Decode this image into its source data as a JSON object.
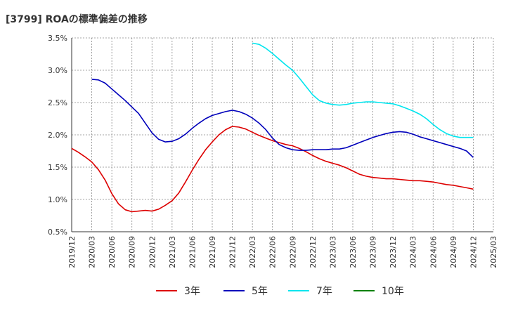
{
  "chart_data": {
    "type": "line",
    "title": "[3799]  ROAの標準偏差の推移",
    "xlabel": "",
    "ylabel": "",
    "x_ticks": [
      "2019/12",
      "2020/03",
      "2020/06",
      "2020/09",
      "2020/12",
      "2021/03",
      "2021/06",
      "2021/09",
      "2021/12",
      "2022/03",
      "2022/06",
      "2022/09",
      "2022/12",
      "2023/03",
      "2023/06",
      "2023/09",
      "2023/12",
      "2024/03",
      "2024/06",
      "2024/09",
      "2024/12",
      "2025/03"
    ],
    "y_ticks": [
      "0.5%",
      "1.0%",
      "1.5%",
      "2.0%",
      "2.5%",
      "3.0%",
      "3.5%"
    ],
    "ylim": [
      0.5,
      3.5
    ],
    "grid": true,
    "legend_position": "bottom",
    "series": [
      {
        "name": "3年",
        "color": "#dd0000",
        "values": [
          [
            "2019/12",
            1.79
          ],
          [
            "2020/01",
            1.73
          ],
          [
            "2020/02",
            1.66
          ],
          [
            "2020/03",
            1.58
          ],
          [
            "2020/04",
            1.46
          ],
          [
            "2020/05",
            1.3
          ],
          [
            "2020/06",
            1.09
          ],
          [
            "2020/07",
            0.93
          ],
          [
            "2020/08",
            0.84
          ],
          [
            "2020/09",
            0.81
          ],
          [
            "2020/10",
            0.82
          ],
          [
            "2020/11",
            0.83
          ],
          [
            "2020/12",
            0.82
          ],
          [
            "2021/01",
            0.85
          ],
          [
            "2021/02",
            0.91
          ],
          [
            "2021/03",
            0.98
          ],
          [
            "2021/04",
            1.1
          ],
          [
            "2021/05",
            1.27
          ],
          [
            "2021/06",
            1.45
          ],
          [
            "2021/07",
            1.62
          ],
          [
            "2021/08",
            1.77
          ],
          [
            "2021/09",
            1.89
          ],
          [
            "2021/10",
            2.0
          ],
          [
            "2021/11",
            2.08
          ],
          [
            "2021/12",
            2.13
          ],
          [
            "2022/01",
            2.12
          ],
          [
            "2022/02",
            2.09
          ],
          [
            "2022/03",
            2.04
          ],
          [
            "2022/04",
            1.99
          ],
          [
            "2022/05",
            1.95
          ],
          [
            "2022/06",
            1.91
          ],
          [
            "2022/07",
            1.88
          ],
          [
            "2022/08",
            1.85
          ],
          [
            "2022/09",
            1.83
          ],
          [
            "2022/10",
            1.79
          ],
          [
            "2022/11",
            1.74
          ],
          [
            "2022/12",
            1.68
          ],
          [
            "2023/01",
            1.63
          ],
          [
            "2023/02",
            1.59
          ],
          [
            "2023/03",
            1.56
          ],
          [
            "2023/04",
            1.53
          ],
          [
            "2023/05",
            1.49
          ],
          [
            "2023/06",
            1.44
          ],
          [
            "2023/07",
            1.39
          ],
          [
            "2023/08",
            1.36
          ],
          [
            "2023/09",
            1.34
          ],
          [
            "2023/10",
            1.33
          ],
          [
            "2023/11",
            1.32
          ],
          [
            "2023/12",
            1.32
          ],
          [
            "2024/01",
            1.31
          ],
          [
            "2024/02",
            1.3
          ],
          [
            "2024/03",
            1.29
          ],
          [
            "2024/04",
            1.29
          ],
          [
            "2024/05",
            1.28
          ],
          [
            "2024/06",
            1.27
          ],
          [
            "2024/07",
            1.25
          ],
          [
            "2024/08",
            1.23
          ],
          [
            "2024/09",
            1.22
          ],
          [
            "2024/10",
            1.2
          ],
          [
            "2024/11",
            1.18
          ],
          [
            "2024/12",
            1.16
          ]
        ]
      },
      {
        "name": "5年",
        "color": "#0000bb",
        "values": [
          [
            "2020/03",
            2.86
          ],
          [
            "2020/04",
            2.85
          ],
          [
            "2020/05",
            2.8
          ],
          [
            "2020/06",
            2.71
          ],
          [
            "2020/07",
            2.62
          ],
          [
            "2020/08",
            2.53
          ],
          [
            "2020/09",
            2.43
          ],
          [
            "2020/10",
            2.33
          ],
          [
            "2020/11",
            2.18
          ],
          [
            "2020/12",
            2.03
          ],
          [
            "2021/01",
            1.93
          ],
          [
            "2021/02",
            1.89
          ],
          [
            "2021/03",
            1.9
          ],
          [
            "2021/04",
            1.94
          ],
          [
            "2021/05",
            2.01
          ],
          [
            "2021/06",
            2.1
          ],
          [
            "2021/07",
            2.18
          ],
          [
            "2021/08",
            2.25
          ],
          [
            "2021/09",
            2.3
          ],
          [
            "2021/10",
            2.33
          ],
          [
            "2021/11",
            2.36
          ],
          [
            "2021/12",
            2.38
          ],
          [
            "2022/01",
            2.36
          ],
          [
            "2022/02",
            2.32
          ],
          [
            "2022/03",
            2.26
          ],
          [
            "2022/04",
            2.18
          ],
          [
            "2022/05",
            2.08
          ],
          [
            "2022/06",
            1.95
          ],
          [
            "2022/07",
            1.85
          ],
          [
            "2022/08",
            1.8
          ],
          [
            "2022/09",
            1.77
          ],
          [
            "2022/10",
            1.76
          ],
          [
            "2022/11",
            1.76
          ],
          [
            "2022/12",
            1.77
          ],
          [
            "2023/01",
            1.77
          ],
          [
            "2023/02",
            1.77
          ],
          [
            "2023/03",
            1.78
          ],
          [
            "2023/04",
            1.78
          ],
          [
            "2023/05",
            1.8
          ],
          [
            "2023/06",
            1.84
          ],
          [
            "2023/07",
            1.88
          ],
          [
            "2023/08",
            1.92
          ],
          [
            "2023/09",
            1.96
          ],
          [
            "2023/10",
            1.99
          ],
          [
            "2023/11",
            2.02
          ],
          [
            "2023/12",
            2.04
          ],
          [
            "2024/01",
            2.05
          ],
          [
            "2024/02",
            2.04
          ],
          [
            "2024/03",
            2.01
          ],
          [
            "2024/04",
            1.97
          ],
          [
            "2024/05",
            1.94
          ],
          [
            "2024/06",
            1.91
          ],
          [
            "2024/07",
            1.88
          ],
          [
            "2024/08",
            1.85
          ],
          [
            "2024/09",
            1.82
          ],
          [
            "2024/10",
            1.79
          ],
          [
            "2024/11",
            1.75
          ],
          [
            "2024/12",
            1.65
          ]
        ]
      },
      {
        "name": "7年",
        "color": "#00e5ee",
        "values": [
          [
            "2022/03",
            3.42
          ],
          [
            "2022/04",
            3.4
          ],
          [
            "2022/05",
            3.34
          ],
          [
            "2022/06",
            3.26
          ],
          [
            "2022/07",
            3.17
          ],
          [
            "2022/08",
            3.08
          ],
          [
            "2022/09",
            3.0
          ],
          [
            "2022/10",
            2.88
          ],
          [
            "2022/11",
            2.75
          ],
          [
            "2022/12",
            2.62
          ],
          [
            "2023/01",
            2.53
          ],
          [
            "2023/02",
            2.49
          ],
          [
            "2023/03",
            2.47
          ],
          [
            "2023/04",
            2.46
          ],
          [
            "2023/05",
            2.47
          ],
          [
            "2023/06",
            2.49
          ],
          [
            "2023/07",
            2.5
          ],
          [
            "2023/08",
            2.51
          ],
          [
            "2023/09",
            2.51
          ],
          [
            "2023/10",
            2.5
          ],
          [
            "2023/11",
            2.49
          ],
          [
            "2023/12",
            2.48
          ],
          [
            "2024/01",
            2.45
          ],
          [
            "2024/02",
            2.41
          ],
          [
            "2024/03",
            2.37
          ],
          [
            "2024/04",
            2.32
          ],
          [
            "2024/05",
            2.25
          ],
          [
            "2024/06",
            2.16
          ],
          [
            "2024/07",
            2.08
          ],
          [
            "2024/08",
            2.02
          ],
          [
            "2024/09",
            1.98
          ],
          [
            "2024/10",
            1.96
          ],
          [
            "2024/11",
            1.96
          ],
          [
            "2024/12",
            1.96
          ]
        ]
      },
      {
        "name": "10年",
        "color": "#008000",
        "values": []
      }
    ]
  }
}
